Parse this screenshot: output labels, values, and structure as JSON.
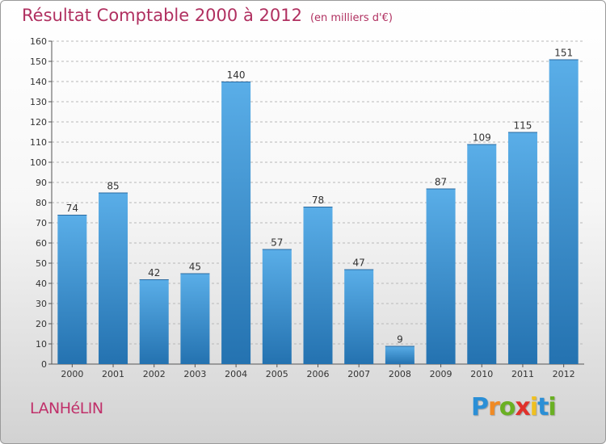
{
  "chart_data": {
    "type": "bar",
    "title": "Résultat Comptable 2000 à 2012",
    "subtitle": "(en milliers d'€)",
    "categories": [
      "2000",
      "2001",
      "2002",
      "2003",
      "2004",
      "2005",
      "2006",
      "2007",
      "2008",
      "2009",
      "2010",
      "2011",
      "2012"
    ],
    "values": [
      74,
      85,
      42,
      45,
      140,
      57,
      78,
      47,
      9,
      87,
      109,
      115,
      151
    ],
    "ylim": [
      0,
      160
    ],
    "yticks": [
      0,
      10,
      20,
      30,
      40,
      50,
      60,
      70,
      80,
      90,
      100,
      110,
      120,
      130,
      140,
      150,
      160
    ],
    "xlabel": "",
    "ylabel": "",
    "grid": true,
    "colors": {
      "bar_top": "#5aaee8",
      "bar_bottom": "#2472b0",
      "title": "#b03060"
    }
  },
  "commune": "LANHéLIN",
  "logo": {
    "letters": [
      "P",
      "r",
      "o",
      "x",
      "i",
      "t",
      "i"
    ],
    "colors": [
      "#2b8fd6",
      "#f08a24",
      "#6ab023",
      "#e0312b",
      "#f0c020",
      "#2b8fd6",
      "#6ab023"
    ]
  }
}
